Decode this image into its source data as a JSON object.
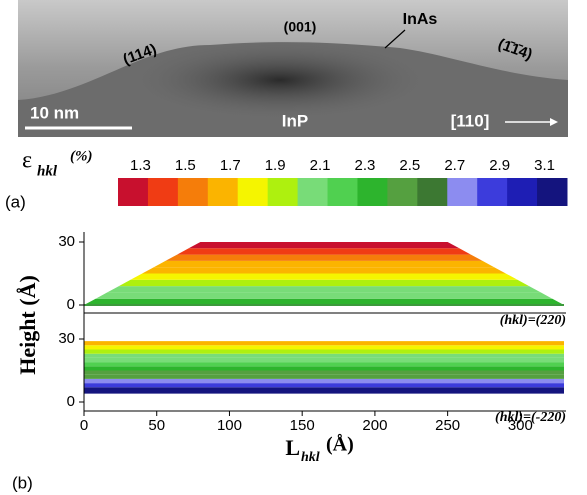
{
  "image": {
    "labels": [
      "(114)",
      "(001)",
      "InAs",
      "(1̄1̄4)",
      "10 nm",
      "InP",
      "[110]"
    ]
  },
  "colorbar": {
    "label": "ε",
    "label_sub": "hkl",
    "label_unit": "(%)",
    "panel": "(a)",
    "clim": [
      1.2,
      3.2
    ],
    "colors": [
      "#c8102e",
      "#f03c14",
      "#f57d0a",
      "#fbb400",
      "#f5f500",
      "#aef00f",
      "#78dc78",
      "#50d050",
      "#2db42d",
      "#55a040",
      "#3c7832",
      "#8c8cf0",
      "#3c3cdc",
      "#1e1eb4",
      "#14147e"
    ],
    "ticks": [
      1.3,
      1.5,
      1.7,
      1.9,
      2.1,
      2.3,
      2.5,
      2.7,
      2.9,
      3.1
    ]
  },
  "chart_data": {
    "type": "band",
    "panel": "(b)",
    "ylabel": "Height (Å)",
    "xlabel": "L",
    "xlabel_sub": "hkl",
    "xlabel_unit": "(Å)",
    "xlim": [
      0,
      330
    ],
    "xticks": [
      0,
      50,
      100,
      150,
      200,
      250,
      300
    ],
    "ylim": [
      0,
      30
    ],
    "yticks": [
      0,
      30
    ],
    "plots": [
      {
        "annotation": "(hkl)=(220)",
        "outline_x": [
          0,
          80,
          250,
          330
        ],
        "outline_y": [
          0,
          30,
          30,
          0
        ],
        "band_edges": [
          0,
          3,
          6,
          9,
          12,
          15,
          18,
          21,
          24,
          27,
          30
        ],
        "strain": [
          2.3,
          2.1,
          2.0,
          1.9,
          1.8,
          1.7,
          1.6,
          1.5,
          1.4,
          1.3
        ]
      },
      {
        "annotation": "(hkl)=(-220)",
        "outline_x": [
          0,
          0,
          330,
          330
        ],
        "outline_y": [
          0,
          30,
          30,
          0
        ],
        "band_edges": [
          4,
          7,
          9,
          11,
          13,
          15,
          17,
          19,
          21,
          23,
          25,
          27,
          29
        ],
        "strain": [
          3.1,
          2.9,
          2.7,
          2.5,
          2.4,
          2.3,
          2.2,
          2.1,
          2.0,
          1.9,
          1.8,
          1.7
        ]
      }
    ]
  }
}
